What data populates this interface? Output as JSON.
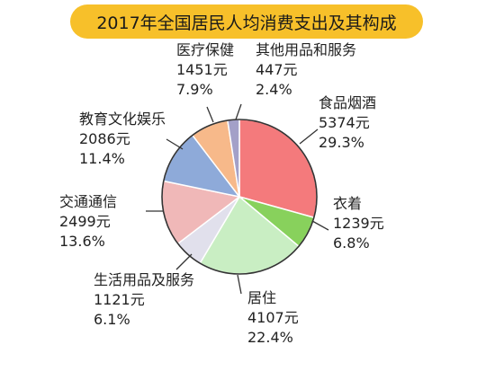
{
  "chart_data": {
    "type": "pie",
    "title": "2017年全国居民人均消费支出及其构成",
    "slices": [
      {
        "name": "食品烟酒",
        "value": 5374,
        "value_label": "5374元",
        "percent": 29.3,
        "percent_label": "29.3%",
        "color": "#f47a7c"
      },
      {
        "name": "衣着",
        "value": 1239,
        "value_label": "1239元",
        "percent": 6.8,
        "percent_label": "6.8%",
        "color": "#88d15c"
      },
      {
        "name": "居住",
        "value": 4107,
        "value_label": "4107元",
        "percent": 22.4,
        "percent_label": "22.4%",
        "color": "#c9eec3"
      },
      {
        "name": "生活用品及服务",
        "value": 1121,
        "value_label": "1121元",
        "percent": 6.1,
        "percent_label": "6.1%",
        "color": "#e1e0ec"
      },
      {
        "name": "交通通信",
        "value": 2499,
        "value_label": "2499元",
        "percent": 13.6,
        "percent_label": "13.6%",
        "color": "#f0b8b8"
      },
      {
        "name": "教育文化娱乐",
        "value": 2086,
        "value_label": "2086元",
        "percent": 11.4,
        "percent_label": "11.4%",
        "color": "#8eaad9"
      },
      {
        "name": "医疗保健",
        "value": 1451,
        "value_label": "1451元",
        "percent": 7.9,
        "percent_label": "7.9%",
        "color": "#f7b98a"
      },
      {
        "name": "其他用品和服务",
        "value": 447,
        "value_label": "447元",
        "percent": 2.4,
        "percent_label": "2.4%",
        "color": "#a3a0c8"
      }
    ]
  }
}
